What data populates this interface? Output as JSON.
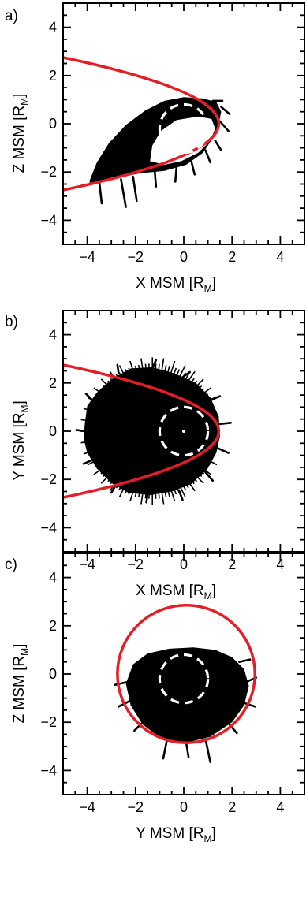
{
  "chart_data": [
    {
      "type": "scatter",
      "panel_label": "a)",
      "xlabel": "X MSM [R",
      "xlabel_sub": "M",
      "xlabel_end": "]",
      "ylabel": "Z MSM [R",
      "ylabel_sub": "M",
      "ylabel_end": "]",
      "xlim": [
        -5,
        5
      ],
      "ylim": [
        -5,
        5
      ],
      "xticks": [
        -4,
        -2,
        0,
        2,
        4
      ],
      "yticks": [
        -4,
        -2,
        0,
        2,
        4
      ],
      "tick_labels": [
        "−4",
        "−2",
        "0",
        "2",
        "4"
      ],
      "boundary": {
        "kind": "parabola",
        "color": "#e41e26",
        "nose_x": 1.45,
        "center_z": 0,
        "halfwidth_at_tail": 2.75,
        "tail_x": -5
      },
      "planet": {
        "center": [
          0,
          -0.2
        ],
        "radius": 1.0,
        "color": "#ffffff",
        "dashed": true
      },
      "trajectory": {
        "color": "#000000",
        "outline": [
          [
            -3.9,
            -2.35
          ],
          [
            -3.6,
            -1.6
          ],
          [
            -3.1,
            -0.8
          ],
          [
            -2.4,
            -0.05
          ],
          [
            -1.6,
            0.55
          ],
          [
            -0.8,
            0.95
          ],
          [
            0,
            1.1
          ],
          [
            0.8,
            1.05
          ],
          [
            1.35,
            0.9
          ],
          [
            1.55,
            0.5
          ],
          [
            1.45,
            0.0
          ],
          [
            1.2,
            -0.6
          ],
          [
            0.8,
            -1.2
          ],
          [
            0.1,
            -1.7
          ],
          [
            -0.8,
            -1.95
          ],
          [
            -1.8,
            -2.05
          ],
          [
            -2.8,
            -2.25
          ],
          [
            -3.9,
            -2.45
          ]
        ],
        "hole_outline": [
          [
            -1.4,
            -1.55
          ],
          [
            -1.3,
            -0.9
          ],
          [
            -0.95,
            -0.3
          ],
          [
            -0.3,
            0.15
          ],
          [
            0.6,
            0.3
          ],
          [
            1.15,
            0.2
          ],
          [
            1.3,
            -0.2
          ],
          [
            1.1,
            -0.7
          ],
          [
            0.6,
            -1.2
          ],
          [
            -0.1,
            -1.55
          ],
          [
            -0.8,
            -1.7
          ]
        ],
        "whiskers": [
          [
            [
              -3.5,
              -2.4
            ],
            [
              -3.4,
              -3.3
            ]
          ],
          [
            [
              -2.6,
              -2.3
            ],
            [
              -2.4,
              -3.45
            ]
          ],
          [
            [
              -2.1,
              -2.2
            ],
            [
              -1.95,
              -3.2
            ]
          ],
          [
            [
              -1.2,
              -2.0
            ],
            [
              -1.15,
              -2.6
            ]
          ],
          [
            [
              -0.3,
              -1.8
            ],
            [
              -0.35,
              -2.4
            ]
          ],
          [
            [
              0.3,
              -1.5
            ],
            [
              0.45,
              -2.1
            ]
          ],
          [
            [
              0.9,
              -1.1
            ],
            [
              1.1,
              -1.6
            ]
          ],
          [
            [
              1.3,
              -0.7
            ],
            [
              1.55,
              -1.1
            ]
          ],
          [
            [
              1.5,
              0.1
            ],
            [
              1.85,
              -0.3
            ]
          ],
          [
            [
              1.55,
              0.7
            ],
            [
              1.9,
              0.4
            ]
          ],
          [
            [
              1.2,
              0.95
            ],
            [
              1.6,
              0.95
            ]
          ]
        ]
      }
    },
    {
      "type": "scatter",
      "panel_label": "b)",
      "xlabel": "X MSM [R",
      "xlabel_sub": "M",
      "xlabel_end": "]",
      "ylabel": "Y MSM [R",
      "ylabel_sub": "M",
      "ylabel_end": "]",
      "xlim": [
        -5,
        5
      ],
      "ylim": [
        -5,
        5
      ],
      "xticks": [
        -4,
        -2,
        0,
        2,
        4
      ],
      "yticks": [
        -4,
        -2,
        0,
        2,
        4
      ],
      "tick_labels": [
        "−4",
        "−2",
        "0",
        "2",
        "4"
      ],
      "boundary": {
        "kind": "parabola",
        "color": "#e41e26",
        "nose_x": 1.45,
        "center_z": 0,
        "halfwidth_at_tail": 2.75,
        "tail_x": -5
      },
      "planet": {
        "center": [
          0,
          0
        ],
        "radius": 1.0,
        "color": "#ffffff",
        "dashed": true,
        "dot": true
      },
      "trajectory": {
        "color": "#000000",
        "outline": [
          [
            -4.1,
            0.3
          ],
          [
            -4.0,
            1.05
          ],
          [
            -3.6,
            1.6
          ],
          [
            -3.0,
            2.15
          ],
          [
            -2.2,
            2.6
          ],
          [
            -1.3,
            2.65
          ],
          [
            -0.4,
            2.4
          ],
          [
            0.5,
            2.0
          ],
          [
            1.1,
            1.4
          ],
          [
            1.45,
            0.6
          ],
          [
            1.5,
            -0.2
          ],
          [
            1.35,
            -0.9
          ],
          [
            0.95,
            -1.6
          ],
          [
            0.3,
            -2.2
          ],
          [
            -0.5,
            -2.5
          ],
          [
            -1.4,
            -2.65
          ],
          [
            -2.3,
            -2.55
          ],
          [
            -3.0,
            -2.15
          ],
          [
            -3.6,
            -1.55
          ],
          [
            -4.0,
            -0.9
          ],
          [
            -4.15,
            -0.3
          ]
        ],
        "hole_outline": [],
        "whiskers": [
          [
            [
              -4.1,
              0.0
            ],
            [
              -4.45,
              0.05
            ]
          ],
          [
            [
              -3.8,
              1.3
            ],
            [
              -4.05,
              1.55
            ]
          ],
          [
            [
              -2.7,
              2.4
            ],
            [
              -2.75,
              2.75
            ]
          ],
          [
            [
              -1.3,
              2.6
            ],
            [
              -1.15,
              2.95
            ]
          ],
          [
            [
              -0.1,
              2.2
            ],
            [
              0.25,
              2.45
            ]
          ],
          [
            [
              1.1,
              1.3
            ],
            [
              1.5,
              1.45
            ]
          ],
          [
            [
              1.5,
              0.3
            ],
            [
              1.95,
              0.35
            ]
          ],
          [
            [
              1.4,
              -0.7
            ],
            [
              1.85,
              -0.9
            ]
          ],
          [
            [
              0.9,
              -1.7
            ],
            [
              1.2,
              -2.05
            ]
          ],
          [
            [
              -0.2,
              -2.45
            ],
            [
              -0.05,
              -2.85
            ]
          ],
          [
            [
              -1.5,
              -2.6
            ],
            [
              -1.55,
              -2.95
            ]
          ],
          [
            [
              -2.8,
              -2.2
            ],
            [
              -3.0,
              -2.55
            ]
          ],
          [
            [
              -3.8,
              -1.2
            ],
            [
              -4.15,
              -1.35
            ]
          ]
        ]
      }
    },
    {
      "type": "scatter",
      "panel_label": "c)",
      "xlabel": "Y MSM [R",
      "xlabel_sub": "M",
      "xlabel_end": "]",
      "ylabel": "Z MSM [R",
      "ylabel_sub": "M",
      "ylabel_end": "]",
      "xlim": [
        -5,
        5
      ],
      "ylim": [
        -5,
        5
      ],
      "xticks": [
        -4,
        -2,
        0,
        2,
        4
      ],
      "yticks": [
        -4,
        -2,
        0,
        2,
        4
      ],
      "tick_labels": [
        "−4",
        "−2",
        "0",
        "2",
        "4"
      ],
      "boundary": {
        "kind": "circle",
        "color": "#e41e26",
        "center": [
          0.1,
          0.0
        ],
        "radius": 2.85
      },
      "planet": {
        "center": [
          0,
          -0.2
        ],
        "radius": 1.0,
        "color": "#ffffff",
        "dashed": true
      },
      "trajectory": {
        "color": "#000000",
        "outline": [
          [
            -2.4,
            -0.4
          ],
          [
            -2.1,
            0.4
          ],
          [
            -1.5,
            0.85
          ],
          [
            -0.6,
            1.05
          ],
          [
            0.4,
            1.1
          ],
          [
            1.3,
            1.0
          ],
          [
            2.0,
            0.7
          ],
          [
            2.5,
            0.2
          ],
          [
            2.7,
            -0.5
          ],
          [
            2.5,
            -1.3
          ],
          [
            2.0,
            -2.0
          ],
          [
            1.1,
            -2.6
          ],
          [
            0.1,
            -2.85
          ],
          [
            -0.9,
            -2.7
          ],
          [
            -1.7,
            -2.1
          ],
          [
            -2.2,
            -1.3
          ]
        ],
        "hole_outline": [],
        "whiskers": [
          [
            [
              -2.2,
              -0.3
            ],
            [
              -2.85,
              -0.45
            ]
          ],
          [
            [
              -2.2,
              -1.1
            ],
            [
              -2.7,
              -1.35
            ]
          ],
          [
            [
              -1.7,
              -2.0
            ],
            [
              -2.05,
              -2.35
            ]
          ],
          [
            [
              -0.7,
              -2.75
            ],
            [
              -0.85,
              -3.5
            ]
          ],
          [
            [
              0.1,
              -2.85
            ],
            [
              0.2,
              -3.45
            ]
          ],
          [
            [
              0.9,
              -2.7
            ],
            [
              1.1,
              -3.65
            ]
          ],
          [
            [
              1.9,
              -2.1
            ],
            [
              2.2,
              -2.45
            ]
          ],
          [
            [
              2.5,
              -1.2
            ],
            [
              2.95,
              -1.35
            ]
          ],
          [
            [
              2.65,
              -0.3
            ],
            [
              3.0,
              -0.15
            ]
          ],
          [
            [
              2.3,
              0.5
            ],
            [
              2.75,
              0.6
            ]
          ]
        ]
      }
    }
  ]
}
